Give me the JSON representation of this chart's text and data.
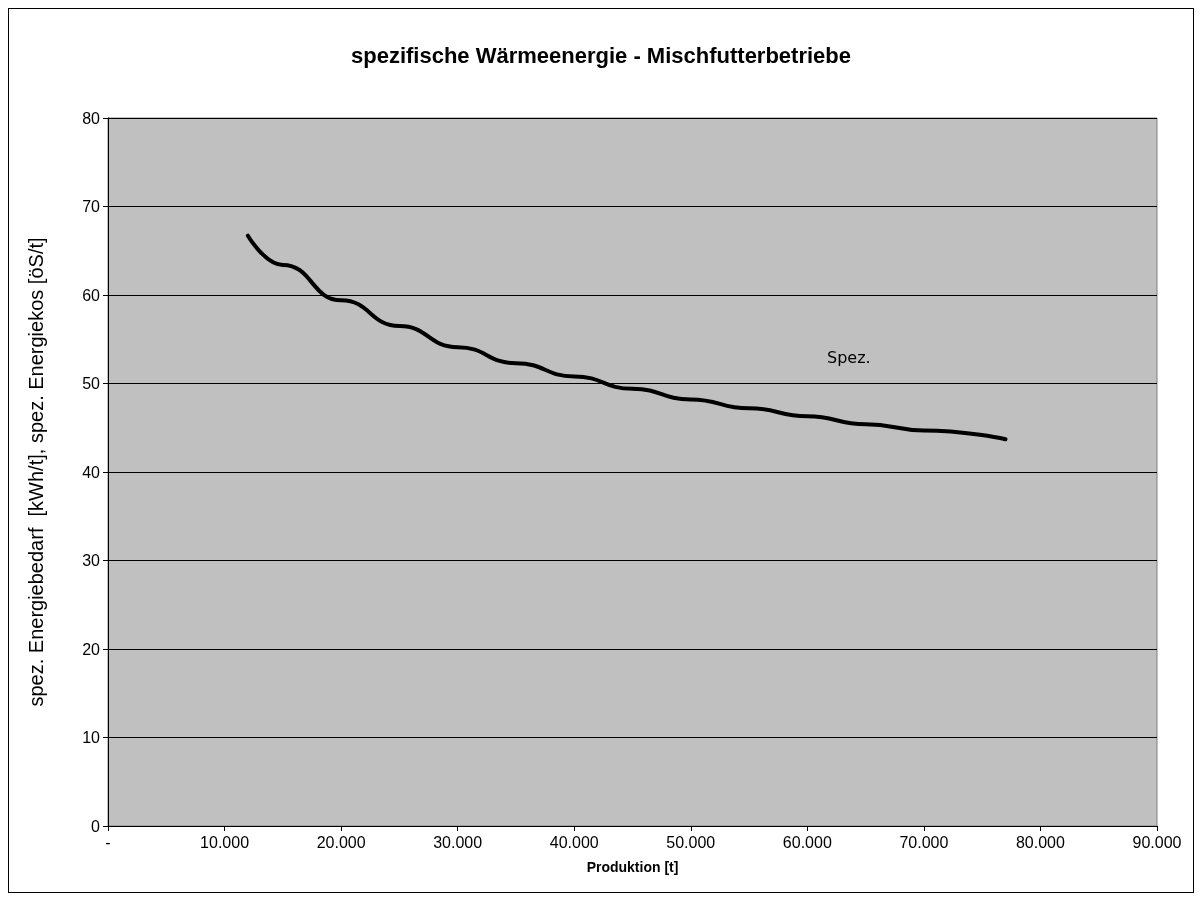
{
  "chart_data": {
    "type": "line",
    "title": "spezifische Wärmeenergie - Mischfutterbetriebe",
    "xlabel": "Produktion [t]",
    "ylabel": "spez. Energiebedarf  [kWh/t], spez. Energiekos [öS/t]",
    "x": [
      12000,
      15000,
      20000,
      25000,
      30000,
      35000,
      40000,
      45000,
      50000,
      55000,
      60000,
      65000,
      70000,
      77000
    ],
    "series": [
      {
        "color": "#000000",
        "values": [
          66.7,
          63.4,
          59.4,
          56.5,
          54.1,
          52.3,
          50.8,
          49.4,
          48.2,
          47.2,
          46.3,
          45.4,
          44.7,
          43.7
        ]
      }
    ],
    "xlim": [
      0,
      90000
    ],
    "xticks": [
      {
        "value": 0,
        "label": "-"
      },
      {
        "value": 10000,
        "label": "10.000"
      },
      {
        "value": 20000,
        "label": "20.000"
      },
      {
        "value": 30000,
        "label": "30.000"
      },
      {
        "value": 40000,
        "label": "40.000"
      },
      {
        "value": 50000,
        "label": "50.000"
      },
      {
        "value": 60000,
        "label": "60.000"
      },
      {
        "value": 70000,
        "label": "70.000"
      },
      {
        "value": 80000,
        "label": "80.000"
      },
      {
        "value": 90000,
        "label": "90.000"
      }
    ],
    "ylim": [
      0,
      80
    ],
    "yticks": [
      0,
      10,
      20,
      30,
      40,
      50,
      60,
      70,
      80
    ],
    "grid": "y",
    "marker": "none",
    "line_style": "solid",
    "annotations": [
      "Spez."
    ]
  }
}
